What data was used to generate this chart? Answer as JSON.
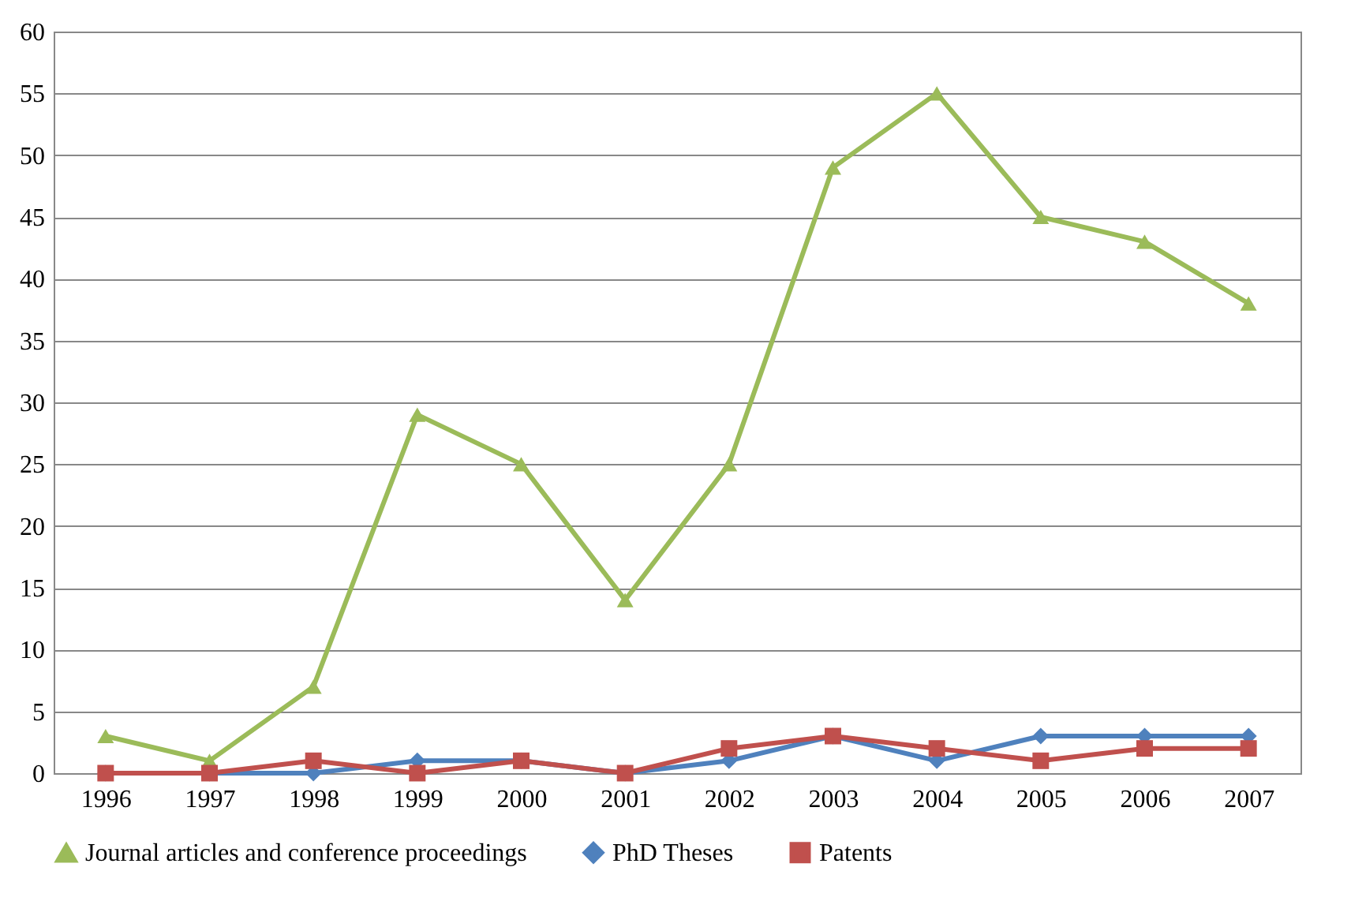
{
  "chart_data": {
    "type": "line",
    "categories": [
      "1996",
      "1997",
      "1998",
      "1999",
      "2000",
      "2001",
      "2002",
      "2003",
      "2004",
      "2005",
      "2006",
      "2007"
    ],
    "series": [
      {
        "name": "Journal articles and conference proceedings",
        "color": "#9bbb59",
        "marker": "triangle",
        "values": [
          3,
          1,
          7,
          29,
          25,
          14,
          25,
          49,
          55,
          45,
          43,
          38
        ]
      },
      {
        "name": "PhD Theses",
        "color": "#4f81bd",
        "marker": "diamond",
        "values": [
          0,
          0,
          0,
          1,
          1,
          0,
          1,
          3,
          1,
          3,
          3,
          3
        ]
      },
      {
        "name": "Patents",
        "color": "#c0504d",
        "marker": "square",
        "values": [
          0,
          0,
          1,
          0,
          1,
          0,
          2,
          3,
          2,
          1,
          2,
          2
        ]
      }
    ],
    "ylim": [
      0,
      60
    ],
    "yticks": [
      0,
      5,
      10,
      15,
      20,
      25,
      30,
      35,
      40,
      45,
      50,
      55,
      60
    ],
    "grid": "y",
    "legend": "bottom",
    "line_style": "solid"
  }
}
